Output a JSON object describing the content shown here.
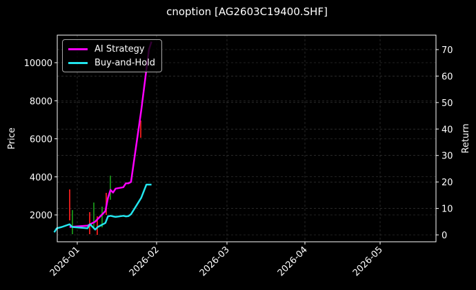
{
  "chart_data": {
    "type": "line",
    "title": "cnoption [AG2603C19400.SHF]",
    "xlabel": "",
    "ylabel": "Price",
    "y2label": "Return",
    "x_tick_labels": [
      "2026-01",
      "2026-02",
      "2026-03",
      "2026-04",
      "2026-05"
    ],
    "y_ticks": [
      2000,
      4000,
      6000,
      8000,
      10000
    ],
    "y2_ticks": [
      0,
      10,
      20,
      30,
      40,
      50,
      60,
      70
    ],
    "ylim": [
      600,
      11500
    ],
    "y2lim": [
      -2.5,
      75
    ],
    "grid": true,
    "legend_position": "upper left",
    "series": [
      {
        "name": "AI Strategy",
        "color": "#ff00ff",
        "axis": "return",
        "x": [
          "2025-12-29",
          "2026-01-05",
          "2026-01-07",
          "2026-01-08",
          "2026-01-12",
          "2026-01-13",
          "2026-01-14",
          "2026-01-15",
          "2026-01-16",
          "2026-01-19",
          "2026-01-20",
          "2026-01-21",
          "2026-01-22",
          "2026-01-26",
          "2026-01-29",
          "2026-01-30"
        ],
        "values": [
          3,
          3.5,
          4.5,
          5,
          9,
          14,
          17,
          16,
          17.5,
          18,
          19.5,
          19.5,
          20,
          47,
          70,
          73
        ]
      },
      {
        "name": "Buy-and-Hold",
        "color": "#22e5ee",
        "axis": "return",
        "x": [
          "2025-12-23",
          "2025-12-24",
          "2025-12-26",
          "2025-12-29",
          "2025-12-30",
          "2026-01-05",
          "2026-01-06",
          "2026-01-07",
          "2026-01-08",
          "2026-01-09",
          "2026-01-12",
          "2026-01-13",
          "2026-01-14",
          "2026-01-15",
          "2026-01-16",
          "2026-01-19",
          "2026-01-20",
          "2026-01-21",
          "2026-01-22",
          "2026-01-26",
          "2026-01-28",
          "2026-01-29",
          "2026-01-30"
        ],
        "values": [
          1,
          2.5,
          3,
          4,
          3,
          2.5,
          4,
          3,
          2,
          3,
          4.5,
          7,
          7.2,
          7,
          6.8,
          7.2,
          7,
          7.1,
          7.8,
          14,
          19,
          19,
          19
        ]
      }
    ],
    "candles_hint": "faint red/green OHLC candles behind lines on price axis, Dec 2025 – Jan 2026, range ~900–11000"
  },
  "legend": {
    "items": [
      {
        "label": "AI Strategy",
        "color": "#ff00ff"
      },
      {
        "label": "Buy-and-Hold",
        "color": "#22e5ee"
      }
    ]
  }
}
